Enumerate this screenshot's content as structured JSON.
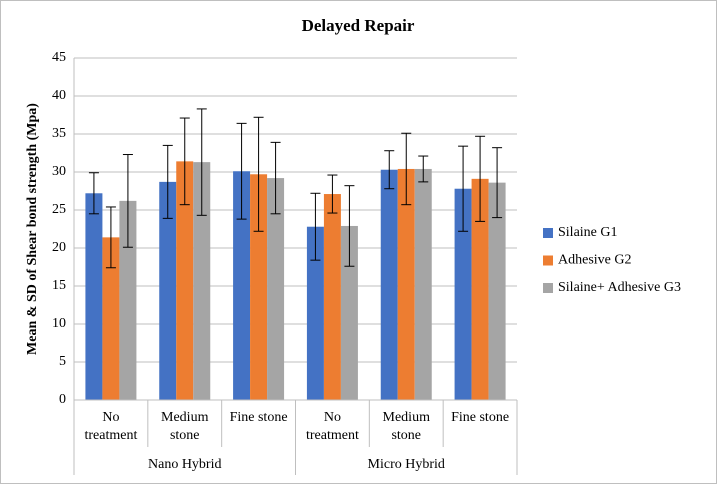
{
  "chart_data": {
    "type": "bar",
    "title": "Delayed Repair",
    "y_label": "Mean & SD of Shear bond strength (Mpa)",
    "groups": [
      {
        "name": "Nano Hybrid",
        "categories": [
          "No treatment",
          "Medium stone",
          "Fine stone"
        ]
      },
      {
        "name": "Micro Hybrid",
        "categories": [
          "No treatment",
          "Medium stone",
          "Fine stone"
        ]
      }
    ],
    "series": [
      {
        "name": "Silaine G1",
        "color": "#4472c4",
        "values": [
          27.2,
          28.7,
          30.1,
          22.8,
          30.3,
          27.8
        ],
        "errors": [
          2.7,
          4.8,
          6.3,
          4.4,
          2.5,
          5.6
        ]
      },
      {
        "name": "Adhesive G2",
        "color": "#ed7d31",
        "values": [
          21.4,
          31.4,
          29.7,
          27.1,
          30.4,
          29.1
        ],
        "errors": [
          4.0,
          5.7,
          7.5,
          2.5,
          4.7,
          5.6
        ]
      },
      {
        "name": "Silaine+ Adhesive G3",
        "color": "#a5a5a5",
        "values": [
          26.2,
          31.3,
          29.2,
          22.9,
          30.4,
          28.6
        ],
        "errors": [
          6.1,
          7.0,
          4.7,
          5.3,
          1.7,
          4.6
        ]
      }
    ],
    "ylim": [
      0,
      45
    ],
    "yticks": [
      0,
      5,
      10,
      15,
      20,
      25,
      30,
      35,
      40,
      45
    ],
    "grid": true,
    "legend": "right"
  }
}
